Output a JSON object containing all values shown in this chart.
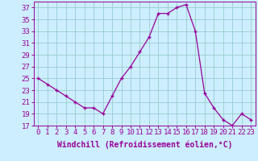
{
  "x": [
    0,
    1,
    2,
    3,
    4,
    5,
    6,
    7,
    8,
    9,
    10,
    11,
    12,
    13,
    14,
    15,
    16,
    17,
    18,
    19,
    20,
    21,
    22,
    23
  ],
  "y": [
    25,
    24,
    23,
    22,
    21,
    20,
    20,
    19,
    22,
    25,
    27,
    29.5,
    32,
    36,
    36,
    37,
    37.5,
    33,
    22.5,
    20,
    18,
    17,
    19,
    18
  ],
  "line_color": "#990099",
  "marker_color": "#990099",
  "bg_color": "#cceeff",
  "grid_color": "#99cccc",
  "xlabel": "Windchill (Refroidissement éolien,°C)",
  "xlim": [
    -0.5,
    23.5
  ],
  "ylim": [
    17,
    38
  ],
  "yticks": [
    17,
    19,
    21,
    23,
    25,
    27,
    29,
    31,
    33,
    35,
    37
  ],
  "xticks": [
    0,
    1,
    2,
    3,
    4,
    5,
    6,
    7,
    8,
    9,
    10,
    11,
    12,
    13,
    14,
    15,
    16,
    17,
    18,
    19,
    20,
    21,
    22,
    23
  ],
  "axis_color": "#990099",
  "label_fontsize": 7,
  "tick_fontsize": 6.5
}
